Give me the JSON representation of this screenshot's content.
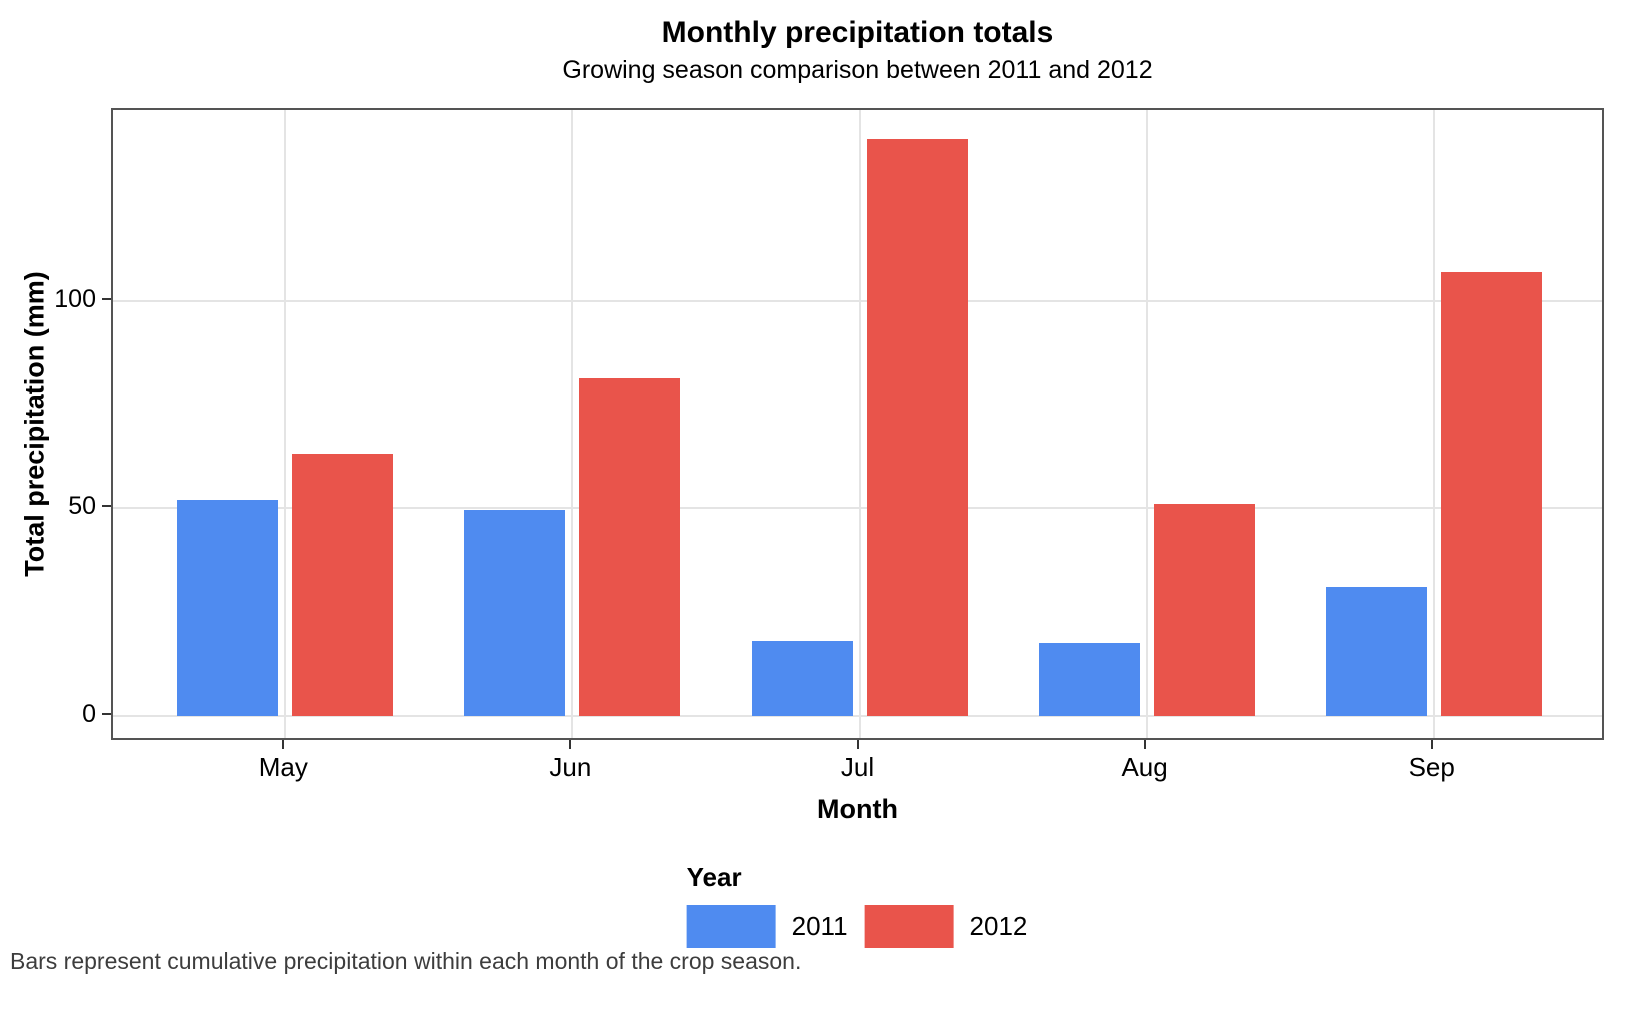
{
  "chart_data": {
    "type": "bar",
    "grouping": "dodged",
    "title": "Monthly precipitation totals",
    "subtitle": "Growing season comparison between 2011 and 2012",
    "caption": "Bars represent cumulative precipitation within each month of the crop season.",
    "xlabel": "Month",
    "ylabel": "Total precipitation (mm)",
    "categories": [
      "May",
      "Jun",
      "Jul",
      "Aug",
      "Sep"
    ],
    "series": [
      {
        "name": "2011",
        "color": "#4F8BF0",
        "values": [
          52,
          49.5,
          18,
          17.5,
          31
        ]
      },
      {
        "name": "2012",
        "color": "#E9544B",
        "values": [
          63,
          81.5,
          139,
          51,
          107
        ]
      }
    ],
    "legend_title": "Year",
    "legend_position": "bottom",
    "yticks": [
      0,
      50,
      100
    ],
    "ylim": [
      0,
      146
    ],
    "grid": "major-only",
    "colors": {
      "series_2011": "#4F8BF0",
      "series_2012": "#E9544B",
      "gridline": "#e4e4e4",
      "panel_border": "#545454",
      "caption_text": "#3d3d3d"
    }
  }
}
